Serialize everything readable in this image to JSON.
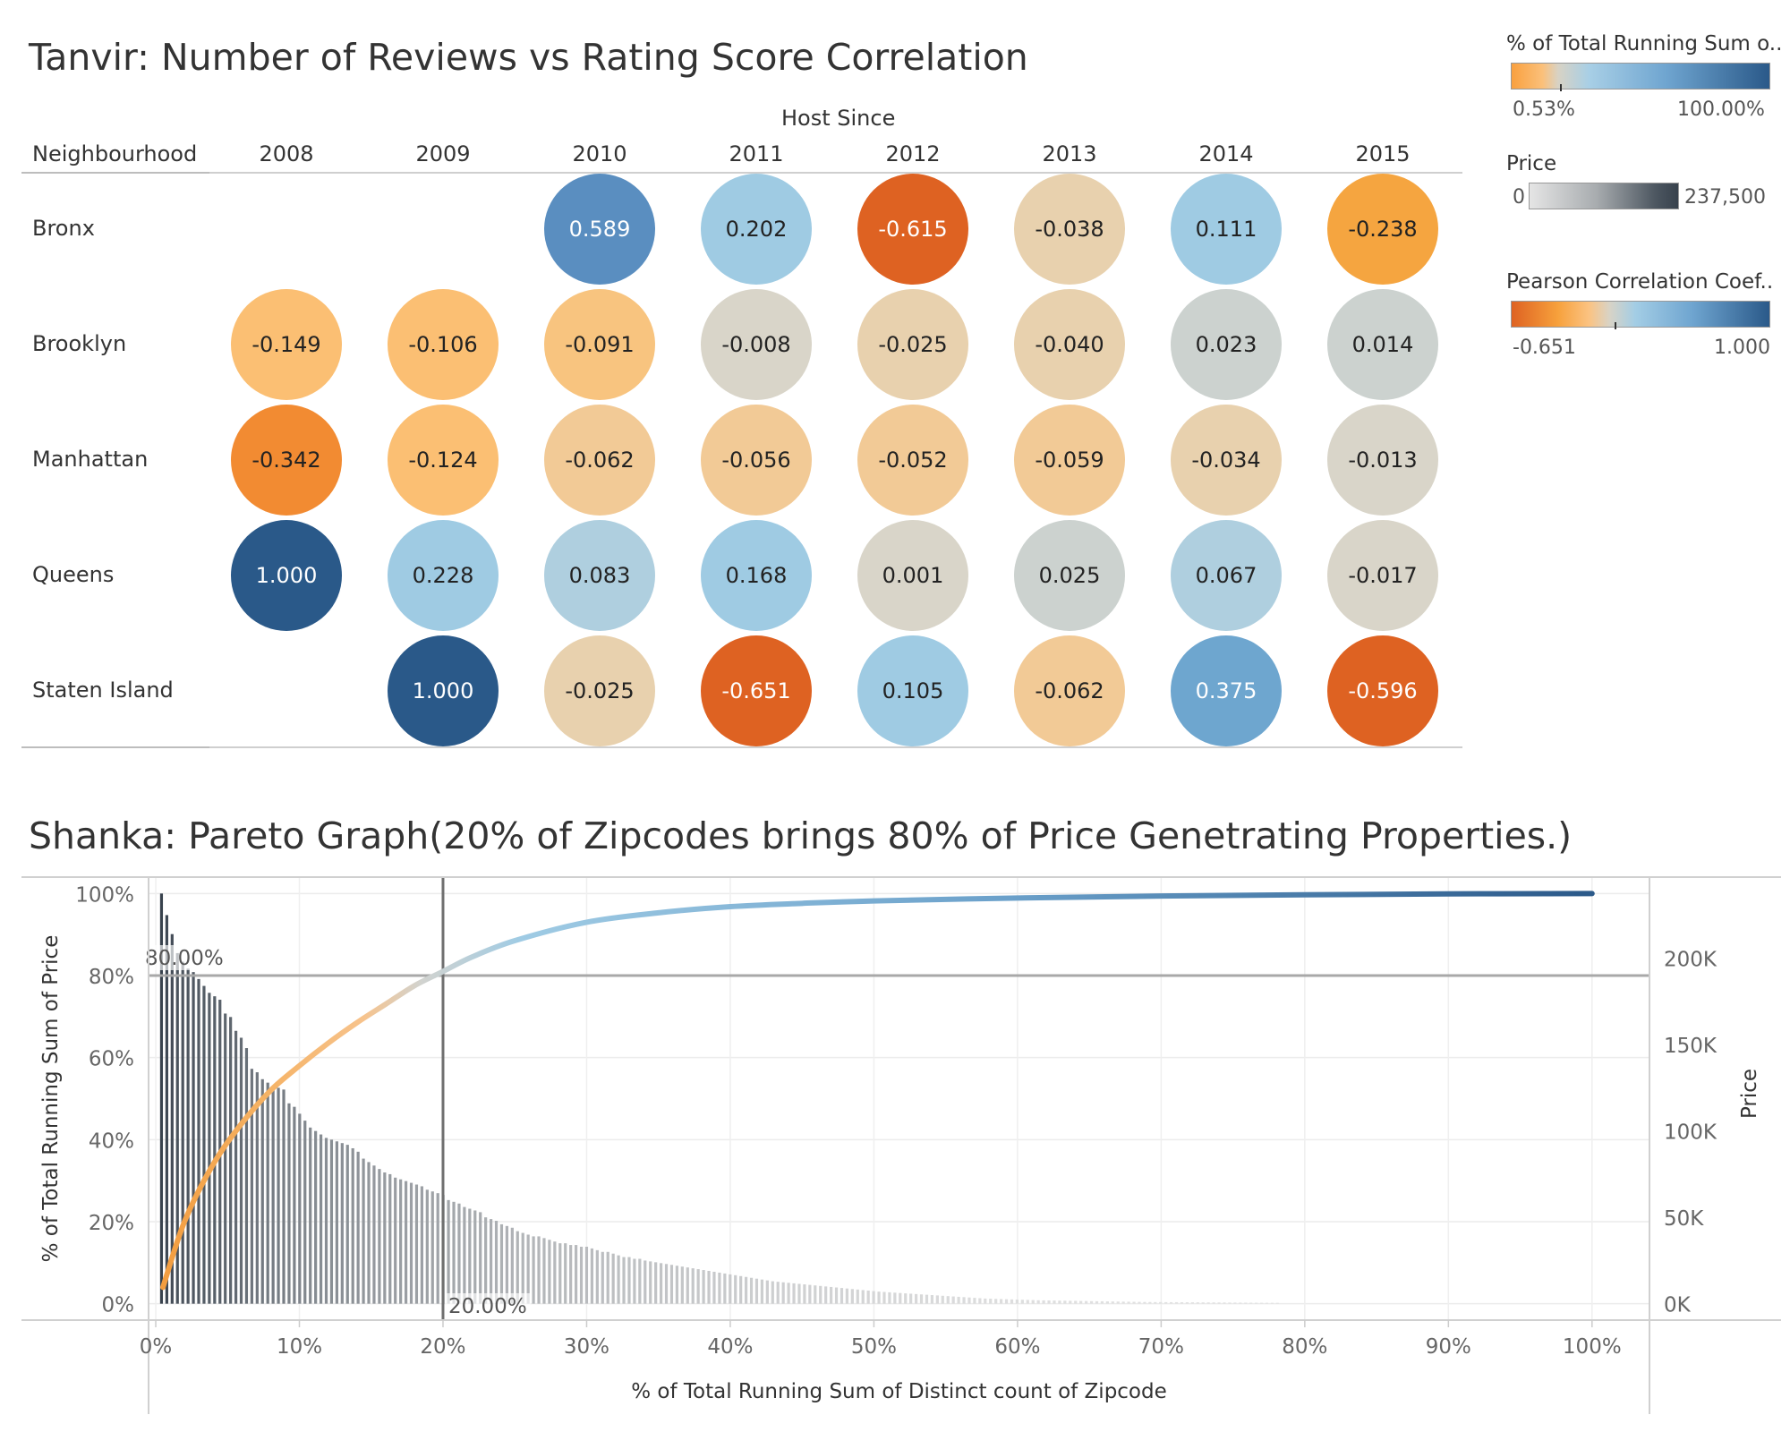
{
  "top": {
    "title": "Tanvir: Number of Reviews vs Rating Score Correlation",
    "column_group_header": "Host Since",
    "row_header": "Neighbourhood"
  },
  "legends": {
    "running_sum": {
      "title": "% of Total Running Sum o..",
      "min": "0.53%",
      "max": "100.00%"
    },
    "price": {
      "title": "Price",
      "min": "0",
      "max": "237,500"
    },
    "pearson": {
      "title": "Pearson Correlation Coef..",
      "min": "-0.651",
      "max": "1.000"
    }
  },
  "colors": {
    "neg_strong": "#de6222",
    "neg_mid": "#f5a540",
    "neg_light": "#fbbf73",
    "neutral": "#d9d5c9",
    "pos_light": "#9fcbe3",
    "pos_mid": "#5a8ec0",
    "pos_strong": "#2a5989"
  },
  "chart_data": [
    {
      "type": "heatmap",
      "title": "Tanvir: Number of Reviews vs Rating Score Correlation",
      "x_header": "Host Since",
      "y_header": "Neighbourhood",
      "columns": [
        "2008",
        "2009",
        "2010",
        "2011",
        "2012",
        "2013",
        "2014",
        "2015"
      ],
      "rows": [
        "Bronx",
        "Brooklyn",
        "Manhattan",
        "Queens",
        "Staten Island"
      ],
      "values": [
        [
          null,
          null,
          0.589,
          0.202,
          -0.615,
          -0.038,
          0.111,
          -0.238
        ],
        [
          -0.149,
          -0.106,
          -0.091,
          -0.008,
          -0.025,
          -0.04,
          0.023,
          0.014
        ],
        [
          -0.342,
          -0.124,
          -0.062,
          -0.056,
          -0.052,
          -0.059,
          -0.034,
          -0.013
        ],
        [
          1.0,
          0.228,
          0.083,
          0.168,
          0.001,
          0.025,
          0.067,
          -0.017
        ],
        [
          null,
          1.0,
          -0.025,
          -0.651,
          0.105,
          -0.062,
          0.375,
          -0.596
        ]
      ],
      "labels": [
        [
          "",
          "",
          "0.589",
          "0.202",
          "-0.615",
          "-0.038",
          "0.111",
          "-0.238"
        ],
        [
          "-0.149",
          "-0.106",
          "-0.091",
          "-0.008",
          "-0.025",
          "-0.040",
          "0.023",
          "0.014"
        ],
        [
          "-0.342",
          "-0.124",
          "-0.062",
          "-0.056",
          "-0.052",
          "-0.059",
          "-0.034",
          "-0.013"
        ],
        [
          "1.000",
          "0.228",
          "0.083",
          "0.168",
          "0.001",
          "0.025",
          "0.067",
          "-0.017"
        ],
        [
          "",
          "1.000",
          "-0.025",
          "-0.651",
          "0.105",
          "-0.062",
          "0.375",
          "-0.596"
        ]
      ]
    },
    {
      "type": "line",
      "title": "Shanka: Pareto Graph(20% of Zipcodes brings 80% of Price Genetrating Properties.)",
      "xlabel": "% of Total Running Sum of Distinct count of Zipcode",
      "ylabel": "% of Total Running Sum of Price",
      "y2label": "Price",
      "x_ticks": [
        "0%",
        "10%",
        "20%",
        "30%",
        "40%",
        "50%",
        "60%",
        "70%",
        "80%",
        "90%",
        "100%"
      ],
      "y_ticks": [
        "0%",
        "20%",
        "40%",
        "60%",
        "80%",
        "100%"
      ],
      "y2_ticks": [
        "0K",
        "50K",
        "100K",
        "150K",
        "200K"
      ],
      "xlim": [
        -0.5,
        104
      ],
      "ylim": [
        -4,
        104
      ],
      "y2lim": [
        0,
        237500
      ],
      "ref_lines": {
        "x": 20,
        "x_label": "20.00%",
        "y": 80,
        "y_label": "80.00%"
      },
      "series": [
        {
          "type": "bar",
          "x_step": 0.37,
          "values": [
            237500,
            225000,
            214000,
            203000,
            198000,
            194000,
            192000,
            188000,
            184000,
            180000,
            178000,
            176000,
            168000,
            166000,
            158000,
            154000,
            148000,
            136000,
            134000,
            130000,
            128000,
            126000,
            125000,
            124000,
            116000,
            114000,
            110000,
            106000,
            102000,
            100000,
            98000,
            96000,
            95000,
            94000,
            93000,
            92000,
            90000,
            88000,
            84000,
            82000,
            80000,
            78000,
            76000,
            75000,
            73000,
            72000,
            71000,
            70000,
            69000,
            68000,
            66000,
            65000,
            64000,
            63000,
            60000,
            59000,
            58000,
            56000,
            55000,
            54000,
            53000,
            50000,
            49000,
            48000,
            46000,
            45000,
            44000,
            42000,
            41000,
            40000,
            39000,
            39000,
            38000,
            37000,
            36000,
            35000,
            35000,
            34000,
            34000,
            33000,
            33000,
            32000,
            31000,
            30000,
            30000,
            29000,
            28000,
            27000,
            27000,
            26000,
            26000,
            25000,
            24500,
            24000,
            23500,
            23000,
            22500,
            22000,
            21500,
            21000,
            20500,
            20000,
            19500,
            19000,
            18500,
            18000,
            17500,
            17000,
            16500,
            16000,
            15500,
            15000,
            14500,
            14000,
            13500,
            13000,
            12700,
            12400,
            12100,
            11800,
            11500,
            11200,
            10900,
            10600,
            10300,
            10000,
            9700,
            9400,
            9100,
            8800,
            8500,
            8200,
            7900,
            7600,
            7300,
            7000,
            6800,
            6600,
            6400,
            6200,
            6000,
            5800,
            5600,
            5400,
            5200,
            5000,
            4800,
            4600,
            4400,
            4200,
            4000,
            3800,
            3600,
            3400,
            3200,
            3000,
            2900,
            2800,
            2700,
            2600,
            2500,
            2400,
            2300,
            2200,
            2100,
            2000,
            1950,
            1900,
            1850,
            1800,
            1750,
            1700,
            1650,
            1600,
            1550,
            1500,
            1450,
            1400,
            1350,
            1300,
            1250,
            1200,
            1150,
            1100,
            1050,
            1000,
            980,
            960,
            940,
            920,
            900,
            880,
            860,
            840,
            820,
            800,
            780,
            760,
            740,
            720,
            700,
            680,
            660,
            640,
            620,
            600,
            580,
            560,
            540,
            520,
            500
          ]
        },
        {
          "type": "line",
          "x": [
            0.5,
            2,
            4,
            6,
            8,
            10,
            12,
            14,
            16,
            18,
            20,
            22,
            25,
            30,
            35,
            40,
            45,
            50,
            60,
            70,
            80,
            90,
            100
          ],
          "y": [
            4,
            20,
            34,
            44,
            52,
            58,
            63.5,
            68.5,
            73,
            77.5,
            81,
            84.5,
            88.5,
            93,
            95.3,
            96.8,
            97.6,
            98.2,
            98.9,
            99.4,
            99.7,
            99.9,
            100
          ]
        }
      ]
    }
  ]
}
